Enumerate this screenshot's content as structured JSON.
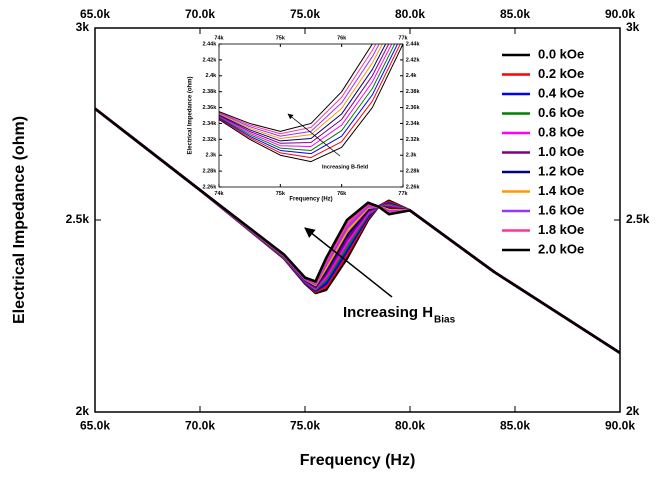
{
  "chart_data": [
    {
      "type": "line",
      "xlabel": "Frequency (Hz)",
      "ylabel": "Electrical Impedance (ohm)",
      "annotation": "Increasing H",
      "annotation_sub": "Bias",
      "xlim": [
        65000,
        90000
      ],
      "xticks": [
        {
          "value": 65000,
          "label": "65.0k"
        },
        {
          "value": 70000,
          "label": "70.0k"
        },
        {
          "value": 75000,
          "label": "75.0k"
        },
        {
          "value": 80000,
          "label": "80.0k"
        },
        {
          "value": 85000,
          "label": "85.0k"
        },
        {
          "value": 90000,
          "label": "90.0k"
        }
      ],
      "ylim": [
        2000,
        3000
      ],
      "yticks": [
        {
          "value": 2000,
          "label": "2k"
        },
        {
          "value": 2500,
          "label": "2.5k"
        },
        {
          "value": 3000,
          "label": "3k"
        }
      ],
      "grid": false,
      "legend": "upper right",
      "x": [
        65000,
        70000,
        74000,
        75000,
        75500,
        76000,
        77000,
        78000,
        78500,
        79000,
        80000,
        84000,
        90000
      ],
      "series": [
        {
          "name": "0.0 kOe",
          "color": "#000000",
          "values": [
            2790,
            2578,
            2400,
            2335,
            2310,
            2318,
            2400,
            2500,
            2535,
            2550,
            2525,
            2365,
            2154
          ]
        },
        {
          "name": "0.2 kOe",
          "color": "#ff0000",
          "values": [
            2790,
            2578,
            2401,
            2337,
            2313,
            2326,
            2410,
            2505,
            2535,
            2547,
            2525,
            2365,
            2154
          ]
        },
        {
          "name": "0.4 kOe",
          "color": "#0000ff",
          "values": [
            2790,
            2578,
            2402,
            2338,
            2316,
            2334,
            2420,
            2509,
            2535,
            2543,
            2525,
            2365,
            2154
          ]
        },
        {
          "name": "0.6 kOe",
          "color": "#008000",
          "values": [
            2790,
            2578,
            2403,
            2340,
            2319,
            2343,
            2430,
            2514,
            2535,
            2540,
            2525,
            2365,
            2154
          ]
        },
        {
          "name": "0.8 kOe",
          "color": "#ff00ff",
          "values": [
            2790,
            2578,
            2404,
            2341,
            2322,
            2351,
            2440,
            2518,
            2535,
            2536,
            2525,
            2365,
            2154
          ]
        },
        {
          "name": "1.0 kOe",
          "color": "#800080",
          "values": [
            2790,
            2578,
            2405,
            2343,
            2325,
            2359,
            2450,
            2523,
            2535,
            2533,
            2525,
            2365,
            2154
          ]
        },
        {
          "name": "1.2 kOe",
          "color": "#000080",
          "values": [
            2790,
            2578,
            2406,
            2344,
            2328,
            2367,
            2460,
            2527,
            2535,
            2529,
            2525,
            2365,
            2154
          ]
        },
        {
          "name": "1.4 kOe",
          "color": "#ff9900",
          "values": [
            2790,
            2578,
            2407,
            2346,
            2331,
            2375,
            2470,
            2532,
            2535,
            2526,
            2525,
            2365,
            2154
          ]
        },
        {
          "name": "1.6 kOe",
          "color": "#9933ff",
          "values": [
            2790,
            2578,
            2408,
            2347,
            2334,
            2384,
            2480,
            2536,
            2535,
            2522,
            2525,
            2365,
            2154
          ]
        },
        {
          "name": "1.8 kOe",
          "color": "#ff3399",
          "values": [
            2790,
            2578,
            2409,
            2349,
            2337,
            2392,
            2490,
            2541,
            2535,
            2519,
            2525,
            2365,
            2154
          ]
        },
        {
          "name": "2.0 kOe",
          "color": "#000000",
          "values": [
            2790,
            2578,
            2410,
            2350,
            2340,
            2400,
            2500,
            2545,
            2535,
            2515,
            2525,
            2365,
            2154
          ]
        }
      ]
    },
    {
      "type": "line",
      "xlabel": "Frequency (Hz)",
      "ylabel": "Electrical Impedance (ohm)",
      "annotation": "Increasing B-field",
      "xlim": [
        74000,
        77000
      ],
      "xticks": [
        {
          "value": 74000,
          "label": "74k"
        },
        {
          "value": 75000,
          "label": "75k"
        },
        {
          "value": 76000,
          "label": "76k"
        },
        {
          "value": 77000,
          "label": "77k"
        }
      ],
      "ylim": [
        2260,
        2440
      ],
      "yticks": [
        {
          "value": 2260,
          "label": "2.26k"
        },
        {
          "value": 2280,
          "label": "2.28k"
        },
        {
          "value": 2300,
          "label": "2.3k"
        },
        {
          "value": 2320,
          "label": "2.32k"
        },
        {
          "value": 2340,
          "label": "2.34k"
        },
        {
          "value": 2360,
          "label": "2.36k"
        },
        {
          "value": 2380,
          "label": "2.38k"
        },
        {
          "value": 2400,
          "label": "2.4k"
        },
        {
          "value": 2420,
          "label": "2.42k"
        },
        {
          "value": 2440,
          "label": "2.44k"
        }
      ],
      "grid": false,
      "x": [
        74000,
        74500,
        75000,
        75500,
        76000,
        76500,
        77000
      ],
      "series": [
        {
          "color": "#000000",
          "values": [
            2345,
            2320,
            2300,
            2292,
            2310,
            2360,
            2440
          ]
        },
        {
          "color": "#ff0000",
          "values": [
            2346,
            2322,
            2303,
            2297,
            2317,
            2368,
            2447
          ]
        },
        {
          "color": "#0000ff",
          "values": [
            2347,
            2324,
            2306,
            2302,
            2324,
            2376,
            2454
          ]
        },
        {
          "color": "#008000",
          "values": [
            2348,
            2326,
            2309,
            2306,
            2331,
            2384,
            2461
          ]
        },
        {
          "color": "#ff00ff",
          "values": [
            2349,
            2328,
            2312,
            2311,
            2338,
            2392,
            2468
          ]
        },
        {
          "color": "#800080",
          "values": [
            2350,
            2330,
            2315,
            2316,
            2345,
            2400,
            2475
          ]
        },
        {
          "color": "#000080",
          "values": [
            2351,
            2332,
            2318,
            2321,
            2352,
            2408,
            2482
          ]
        },
        {
          "color": "#ff9900",
          "values": [
            2352,
            2334,
            2321,
            2326,
            2359,
            2416,
            2489
          ]
        },
        {
          "color": "#9933ff",
          "values": [
            2353,
            2336,
            2324,
            2330,
            2366,
            2424,
            2496
          ]
        },
        {
          "color": "#ff3399",
          "values": [
            2354,
            2338,
            2327,
            2335,
            2373,
            2432,
            2503
          ]
        },
        {
          "color": "#000000",
          "values": [
            2355,
            2340,
            2330,
            2340,
            2380,
            2440,
            2510
          ]
        }
      ]
    }
  ]
}
